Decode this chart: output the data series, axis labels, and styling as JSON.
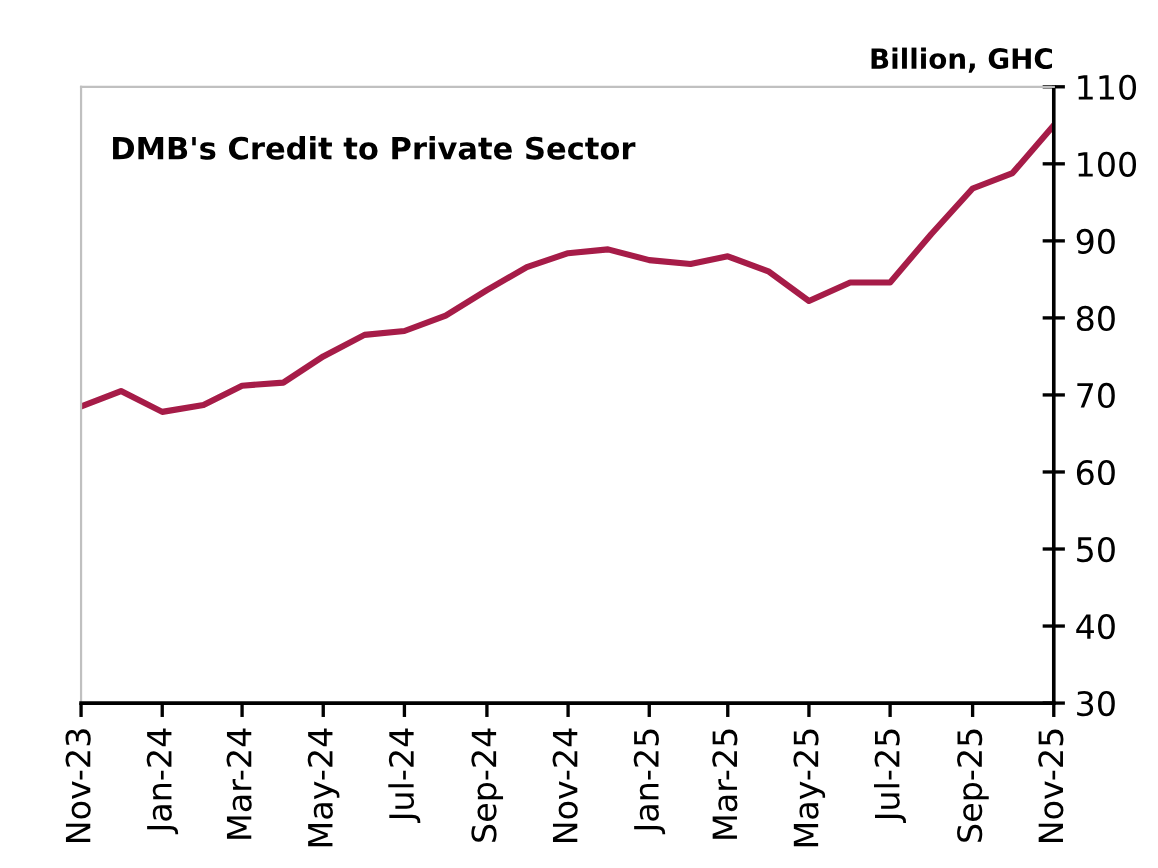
{
  "chart_data": {
    "type": "line",
    "title": "DMB's Credit to Private Sector",
    "ylabel": "Billion, GHC",
    "x": [
      "2023-11",
      "2023-12",
      "2024-01",
      "2024-02",
      "2024-03",
      "2024-04",
      "2024-05",
      "2024-06",
      "2024-07",
      "2024-08",
      "2024-09",
      "2024-10",
      "2024-11",
      "2024-12",
      "2025-01",
      "2025-02",
      "2025-03",
      "2025-04",
      "2025-05",
      "2025-06",
      "2025-07",
      "2025-08",
      "2025-09",
      "2025-10",
      "2025-11"
    ],
    "series": [
      {
        "color": "#a61c48",
        "values": [
          68.5,
          70.5,
          67.8,
          68.7,
          71.2,
          71.6,
          75.0,
          77.8,
          78.3,
          80.3,
          83.6,
          86.6,
          88.4,
          88.9,
          87.5,
          87.0,
          88.0,
          86.0,
          82.2,
          84.6,
          84.6,
          90.9,
          96.8,
          98.8,
          105.0
        ]
      }
    ],
    "xlim": [
      "2023-11",
      "2025-11"
    ],
    "xticks": [
      {
        "value": "2023-11",
        "label": "Nov-23"
      },
      {
        "value": "2024-01",
        "label": "Jan-24"
      },
      {
        "value": "2024-03",
        "label": "Mar-24"
      },
      {
        "value": "2024-05",
        "label": "May-24"
      },
      {
        "value": "2024-07",
        "label": "Jul-24"
      },
      {
        "value": "2024-09",
        "label": "Sep-24"
      },
      {
        "value": "2024-11",
        "label": "Nov-24"
      },
      {
        "value": "2025-01",
        "label": "Jan-25"
      },
      {
        "value": "2025-03",
        "label": "Mar-25"
      },
      {
        "value": "2025-05",
        "label": "May-25"
      },
      {
        "value": "2025-07",
        "label": "Jul-25"
      },
      {
        "value": "2025-09",
        "label": "Sep-25"
      },
      {
        "value": "2025-11",
        "label": "Nov-25"
      }
    ],
    "ylim": [
      30,
      110
    ],
    "yticks": [
      30,
      40,
      50,
      60,
      70,
      80,
      90,
      100,
      110
    ],
    "grid": false,
    "legend": false,
    "marker": "none",
    "line_style": "solid"
  }
}
